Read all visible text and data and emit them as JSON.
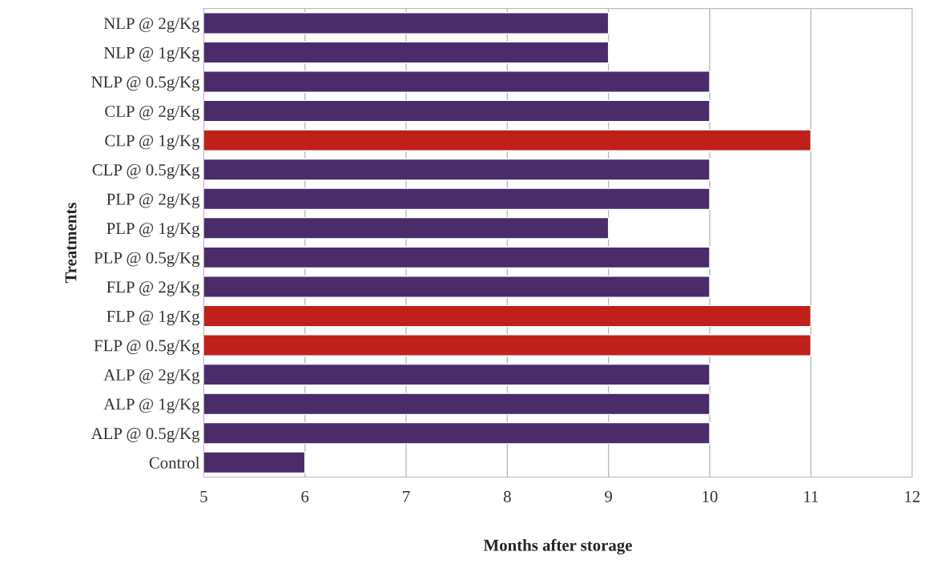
{
  "chart_data": {
    "type": "bar",
    "orientation": "horizontal",
    "xlabel": "Months after storage",
    "ylabel": "Treatments",
    "categories": [
      "NLP @ 2g/Kg",
      "NLP @ 1g/Kg",
      "NLP @ 0.5g/Kg",
      "CLP @ 2g/Kg",
      "CLP @ 1g/Kg",
      "CLP @ 0.5g/Kg",
      "PLP @ 2g/Kg",
      "PLP @ 1g/Kg",
      "PLP @ 0.5g/Kg",
      "FLP @ 2g/Kg",
      "FLP @ 1g/Kg",
      "FLP @ 0.5g/Kg",
      "ALP @ 2g/Kg",
      "ALP @ 1g/Kg",
      "ALP @ 0.5g/Kg",
      "Control"
    ],
    "values": [
      9,
      9,
      10,
      10,
      11,
      10,
      10,
      9,
      10,
      10,
      11,
      11,
      10,
      10,
      10,
      6
    ],
    "colors": [
      "#4a2c6a",
      "#4a2c6a",
      "#4a2c6a",
      "#4a2c6a",
      "#c0201a",
      "#4a2c6a",
      "#4a2c6a",
      "#4a2c6a",
      "#4a2c6a",
      "#4a2c6a",
      "#c0201a",
      "#c0201a",
      "#4a2c6a",
      "#4a2c6a",
      "#4a2c6a",
      "#4a2c6a"
    ],
    "xlim": [
      5,
      12
    ],
    "xticks": [
      5,
      6,
      7,
      8,
      9,
      10,
      11,
      12
    ],
    "grid": "x"
  }
}
